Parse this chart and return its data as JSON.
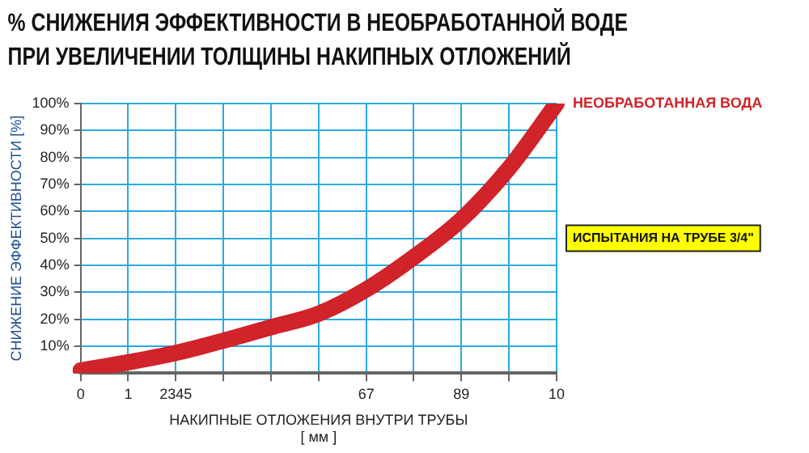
{
  "chart_data": {
    "type": "line",
    "title": "% СНИЖЕНИЯ ЭФФЕКТИВНОСТИ В НЕОБРАБОТАННОЙ ВОДЕ ПРИ УВЕЛИЧЕНИИ ТОЛЩИНЫ НАКИПНЫХ ОТЛОЖЕНИЙ",
    "xlabel": "НАКИПНЫЕ ОТЛОЖЕНИЯ ВНУТРИ ТРУБЫ [ мм ]",
    "ylabel": "СНИЖЕНИЕ ЭФФЕКТИВНОСТИ [%]",
    "categories": [
      "0",
      "1",
      "2345",
      null,
      null,
      null,
      "67",
      null,
      "89",
      null,
      "10"
    ],
    "series": [
      {
        "name": "НЕОБРАБОТАННАЯ ВОДА",
        "color": "#d0232a",
        "values": [
          1,
          4,
          7.5,
          12,
          17,
          22,
          31,
          43,
          57,
          76,
          100
        ]
      }
    ],
    "ylim": [
      0,
      100
    ],
    "yticks": [
      {
        "value": 0,
        "label": null
      },
      {
        "value": 10,
        "label": "10%"
      },
      {
        "value": 20,
        "label": "20%"
      },
      {
        "value": 30,
        "label": "30%"
      },
      {
        "value": 40,
        "label": "40%"
      },
      {
        "value": 50,
        "label": "50%"
      },
      {
        "value": 60,
        "label": "60%"
      },
      {
        "value": 70,
        "label": "70%"
      },
      {
        "value": 80,
        "label": "80%"
      },
      {
        "value": 90,
        "label": "90%"
      },
      {
        "value": 100,
        "label": "100%"
      }
    ],
    "annotations": [
      "ИСПЫТАНИЯ НА ТРУБЕ 3/4\""
    ],
    "grid": true,
    "legend": false,
    "marker": "none",
    "line_style": "solid"
  }
}
